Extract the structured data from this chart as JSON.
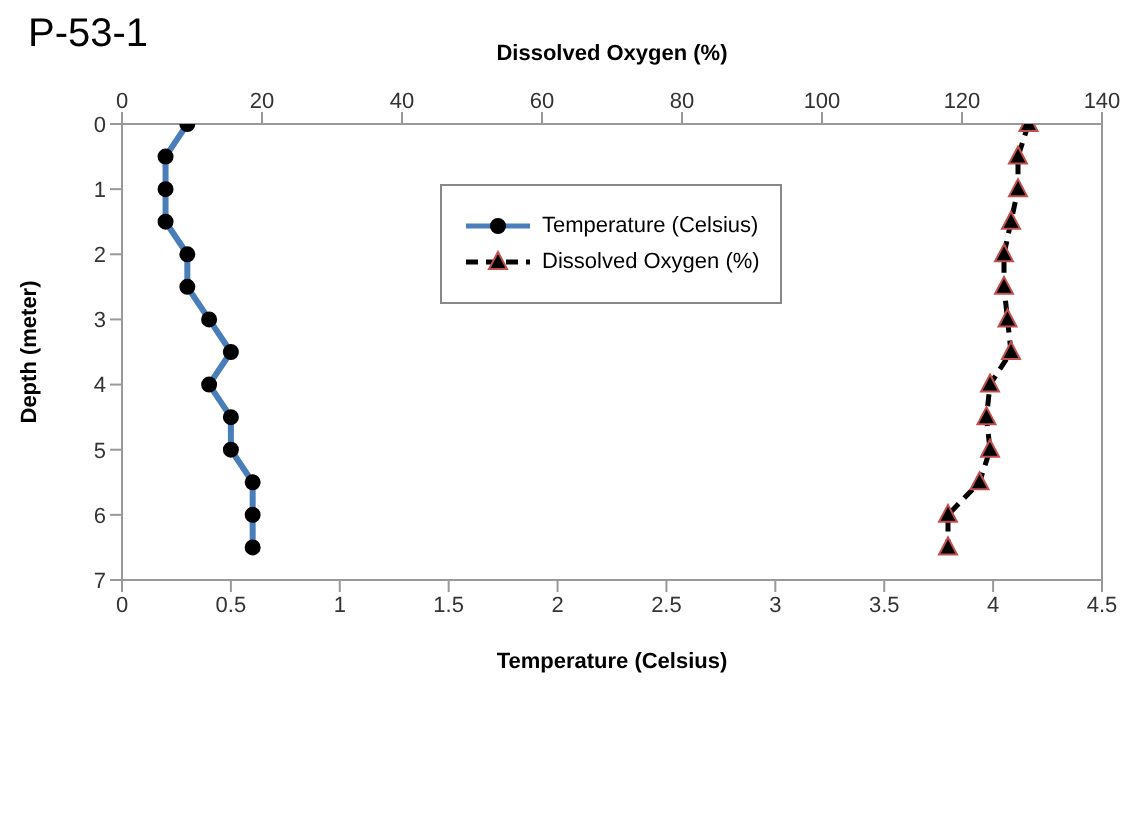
{
  "chart_data": {
    "type": "line",
    "title": "P-53-1",
    "xlabel": "Temperature (Celsius)",
    "x2label": "Dissolved Oxygen (%)",
    "ylabel": "Depth (meter)",
    "orientation": "horizontal",
    "x": [
      0,
      0.5,
      1,
      1.5,
      2,
      2.5,
      3,
      3.5,
      4,
      4.5,
      5,
      5.5,
      6,
      6.5
    ],
    "series": [
      {
        "name": "Temperature (Celsius)",
        "color": "#4a7ebb",
        "marker": "circle",
        "line_style": "solid",
        "values": [
          0.3,
          0.2,
          0.2,
          0.2,
          0.3,
          0.3,
          0.4,
          0.5,
          0.4,
          0.5,
          0.5,
          0.6,
          0.6,
          0.6
        ]
      },
      {
        "name": "Dissolved Oxygen (%)",
        "color": "#000000",
        "marker": "triangle",
        "line_style": "dashed",
        "axis": "x2",
        "values": [
          129.5,
          128,
          128,
          127,
          126,
          126,
          126.5,
          127,
          124,
          123.5,
          124,
          122.5,
          118,
          118
        ]
      }
    ],
    "xlim": [
      0,
      4.5
    ],
    "xticks": [
      0,
      0.5,
      1,
      1.5,
      2,
      2.5,
      3,
      3.5,
      4,
      4.5
    ],
    "x2lim": [
      0,
      140
    ],
    "x2ticks": [
      0,
      20,
      40,
      60,
      80,
      100,
      120,
      140
    ],
    "ylim": [
      7,
      0
    ],
    "yticks": [
      0,
      1,
      2,
      3,
      4,
      5,
      6,
      7
    ],
    "legend": "top"
  }
}
